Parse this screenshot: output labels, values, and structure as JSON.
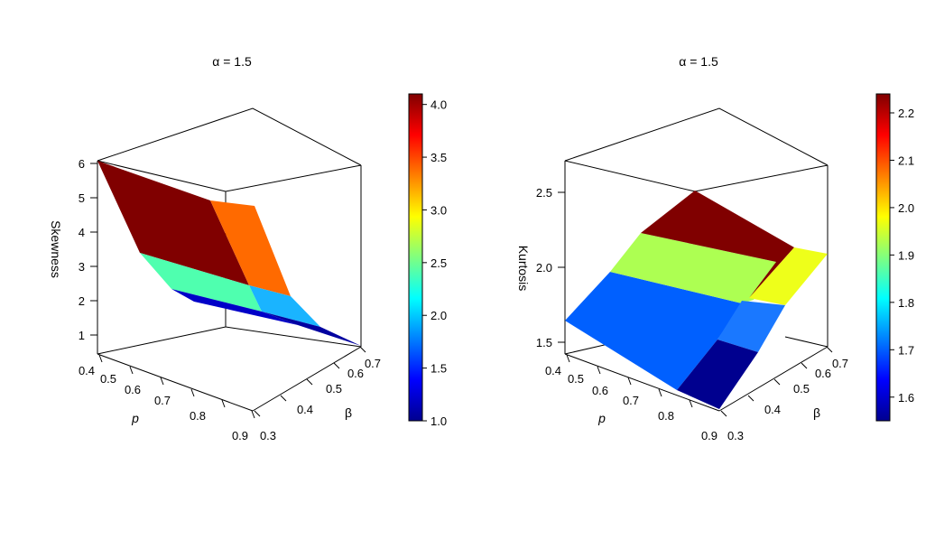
{
  "chart_data": [
    {
      "type": "surface3d",
      "title": "α = 1.5",
      "zlabel": "Skewness",
      "xlabel": "p",
      "ylabel": "β",
      "x_ticks": [
        "0.4",
        "0.5",
        "0.6",
        "0.7",
        "0.8",
        "0.9"
      ],
      "y_ticks": [
        "0.3",
        "0.4",
        "0.5",
        "0.6",
        "0.7"
      ],
      "z_ticks": [
        "1",
        "2",
        "3",
        "4",
        "5",
        "6"
      ],
      "zlim": [
        0.5,
        6
      ],
      "x": [
        0.4,
        0.7,
        0.9
      ],
      "y": [
        0.3,
        0.5,
        0.7
      ],
      "z": [
        [
          6.0,
          3.5,
          2.2
        ],
        [
          3.5,
          2.3,
          1.6
        ],
        [
          2.2,
          1.6,
          1.05
        ]
      ],
      "cell_values": [
        [
          4.1,
          2.5
        ],
        [
          2.5,
          1.3
        ]
      ],
      "colorbar": {
        "min": 1.0,
        "max": 4.1,
        "ticks": [
          "1.0",
          "1.5",
          "2.0",
          "2.5",
          "3.0",
          "3.5",
          "4.0"
        ]
      }
    },
    {
      "type": "surface3d",
      "title": "α = 1.5",
      "zlabel": "Kurtosis",
      "xlabel": "p",
      "ylabel": "β",
      "x_ticks": [
        "0.4",
        "0.5",
        "0.6",
        "0.7",
        "0.8",
        "0.9"
      ],
      "y_ticks": [
        "0.3",
        "0.4",
        "0.5",
        "0.6",
        "0.7"
      ],
      "z_ticks": [
        "1.5",
        "2.0",
        "2.5"
      ],
      "zlim": [
        1.45,
        2.75
      ],
      "x": [
        0.4,
        0.7,
        0.9
      ],
      "y": [
        0.3,
        0.5,
        0.7
      ],
      "z": [
        [
          1.65,
          2.0,
          2.2
        ],
        [
          1.75,
          2.05,
          2.25
        ],
        [
          1.82,
          2.1,
          2.35
        ]
      ],
      "cell_values": [
        [
          1.68,
          1.93
        ],
        [
          1.58,
          2.22
        ]
      ],
      "cell_values_extra_column": [
        1.72,
        1.96
      ],
      "colorbar": {
        "min": 1.55,
        "max": 2.24,
        "ticks": [
          "1.6",
          "1.7",
          "1.8",
          "1.9",
          "2.0",
          "2.1",
          "2.2"
        ]
      }
    }
  ]
}
